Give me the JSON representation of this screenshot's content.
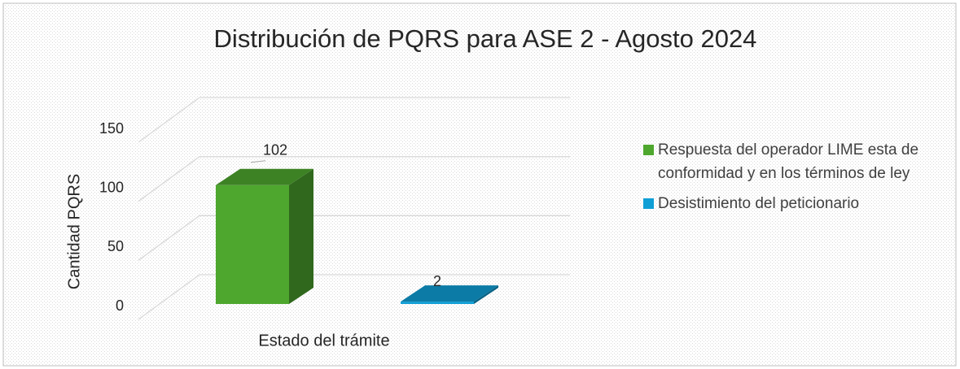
{
  "chart_data": {
    "type": "bar3d",
    "title": "Distribución de PQRS para ASE 2 - Agosto 2024",
    "x_label": "Estado del trámite",
    "y_label": "Cantidad PQRS",
    "series": [
      {
        "name": "Respuesta del operador LIME esta de conformidad y en los términos de ley",
        "color": "#4ea72e",
        "values": [
          102
        ]
      },
      {
        "name": "Desistimiento del peticionario",
        "color": "#0f9ed5",
        "values": [
          2
        ]
      }
    ],
    "ylim": [
      0,
      150
    ],
    "yticks": [
      0,
      50,
      100,
      150
    ],
    "grid": true,
    "legend": "right"
  }
}
